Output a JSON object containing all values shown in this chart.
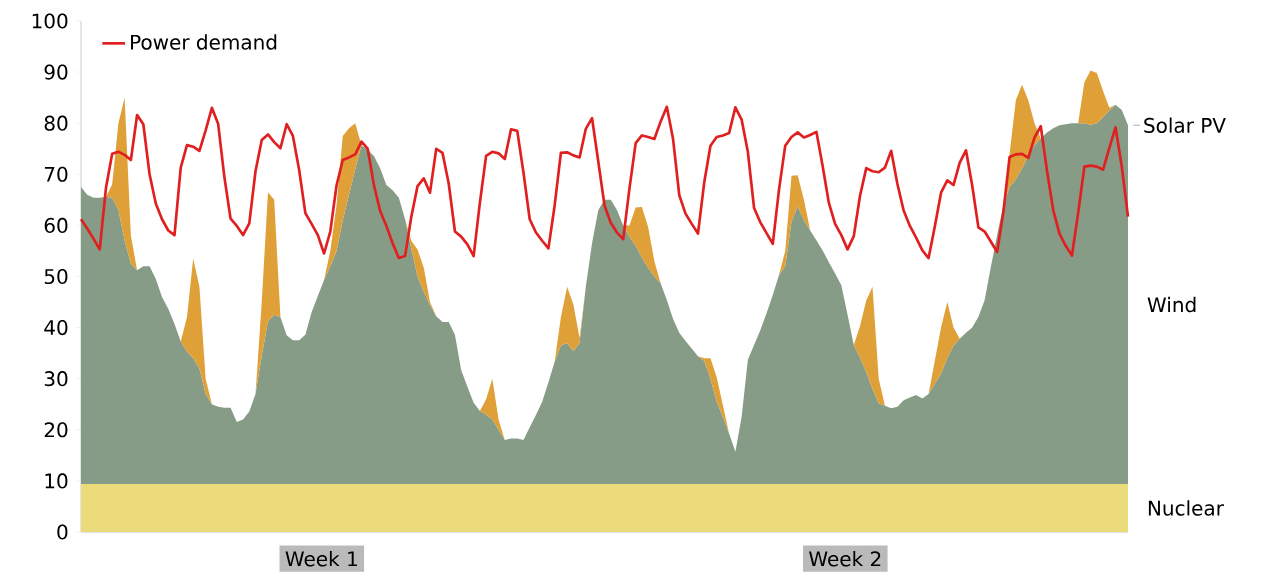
{
  "chart_data": {
    "type": "area",
    "stacked": true,
    "legend": "top left",
    "annotations": [
      "Week 1",
      "Week 2"
    ],
    "ylim": [
      0,
      100
    ],
    "yticks": [
      0,
      10,
      20,
      30,
      40,
      50,
      60,
      70,
      80,
      90,
      100
    ],
    "categories": [
      null,
      null,
      null,
      null,
      null,
      null,
      null,
      null,
      null,
      null,
      null,
      null,
      null,
      null,
      null,
      null,
      null,
      null,
      null,
      null,
      null,
      null,
      null,
      null,
      null,
      null,
      null,
      null,
      null,
      null,
      null,
      null,
      null,
      null,
      null,
      null,
      null,
      null,
      null,
      null,
      null,
      null,
      null,
      null,
      null,
      null,
      null,
      null,
      null,
      null,
      null,
      null,
      null,
      null,
      null,
      null,
      null,
      null,
      null,
      null,
      null,
      null,
      null,
      null,
      null,
      null,
      null,
      null,
      null,
      null,
      null,
      null,
      null,
      null,
      null,
      null,
      null,
      null,
      null,
      null,
      null,
      null,
      null,
      null,
      null,
      null,
      null,
      null,
      null,
      null,
      null,
      null,
      null,
      null,
      null,
      null,
      null,
      null,
      null,
      null,
      null,
      null,
      null,
      null,
      null,
      null,
      null,
      null,
      null,
      null,
      null,
      null,
      null,
      null,
      null,
      null,
      null,
      null,
      null,
      null,
      null,
      null,
      null,
      null,
      null,
      null,
      null,
      null,
      null,
      null,
      null,
      null,
      null,
      null,
      null,
      null,
      null,
      null,
      null,
      null,
      null,
      null,
      null,
      null,
      null,
      null,
      null,
      null,
      null,
      null,
      null,
      null,
      null,
      null,
      null,
      null,
      null,
      null,
      null,
      null,
      null,
      null,
      null,
      null,
      null,
      null,
      null,
      null,
      null
    ],
    "series": [
      {
        "name": "Nuclear",
        "color": "#ecdb7a",
        "values": [
          9.4,
          9.4,
          9.4,
          9.4,
          9.4,
          9.4,
          9.4,
          9.4,
          9.4,
          9.4,
          9.4,
          9.4,
          9.4,
          9.4,
          9.4,
          9.4,
          9.4,
          9.4,
          9.4,
          9.4,
          9.4,
          9.4,
          9.4,
          9.4,
          9.4,
          9.4,
          9.4,
          9.4,
          9.4,
          9.4,
          9.4,
          9.4,
          9.4,
          9.4,
          9.4,
          9.4,
          9.4,
          9.4,
          9.4,
          9.4,
          9.4,
          9.4,
          9.4,
          9.4,
          9.4,
          9.4,
          9.4,
          9.4,
          9.4,
          9.4,
          9.4,
          9.4,
          9.4,
          9.4,
          9.4,
          9.4,
          9.4,
          9.4,
          9.4,
          9.4,
          9.4,
          9.4,
          9.4,
          9.4,
          9.4,
          9.4,
          9.4,
          9.4,
          9.4,
          9.4,
          9.4,
          9.4,
          9.4,
          9.4,
          9.4,
          9.4,
          9.4,
          9.4,
          9.4,
          9.4,
          9.4,
          9.4,
          9.4,
          9.4,
          9.4,
          9.4,
          9.4,
          9.4,
          9.4,
          9.4,
          9.4,
          9.4,
          9.4,
          9.4,
          9.4,
          9.4,
          9.4,
          9.4,
          9.4,
          9.4,
          9.4,
          9.4,
          9.4,
          9.4,
          9.4,
          9.4,
          9.4,
          9.4,
          9.4,
          9.4,
          9.4,
          9.4,
          9.4,
          9.4,
          9.4,
          9.4,
          9.4,
          9.4,
          9.4,
          9.4,
          9.4,
          9.4,
          9.4,
          9.4,
          9.4,
          9.4,
          9.4,
          9.4,
          9.4,
          9.4,
          9.4,
          9.4,
          9.4,
          9.4,
          9.4,
          9.4,
          9.4,
          9.4,
          9.4,
          9.4,
          9.4,
          9.4,
          9.4,
          9.4,
          9.4,
          9.4,
          9.4,
          9.4,
          9.4,
          9.4,
          9.4,
          9.4,
          9.4,
          9.4,
          9.4,
          9.4,
          9.4,
          9.4,
          9.4,
          9.4,
          9.4,
          9.4,
          9.4,
          9.4,
          9.4,
          9.4,
          9.4,
          9.4,
          9.4
        ]
      },
      {
        "name": "Wind",
        "color": "#869c86",
        "values": [
          58.1,
          56.6,
          56.0,
          56.0,
          56.2,
          56.0,
          53.6,
          47.6,
          43.1,
          41.8,
          42.6,
          42.6,
          40.1,
          36.6,
          34.3,
          31.3,
          27.9,
          25.9,
          24.6,
          22.6,
          17.6,
          15.6,
          15.1,
          14.9,
          14.9,
          12.1,
          12.6,
          14.2,
          17.6,
          25.1,
          31.8,
          33.1,
          32.6,
          29.1,
          28.1,
          28.1,
          29.2,
          33.6,
          36.8,
          39.9,
          42.6,
          45.6,
          51.6,
          56.6,
          61.6,
          66.3,
          65.4,
          64.2,
          61.8,
          58.5,
          57.5,
          56.0,
          51.8,
          46.1,
          40.6,
          37.6,
          35.0,
          32.8,
          31.7,
          31.7,
          29.2,
          22.3,
          19.0,
          15.9,
          14.3,
          13.6,
          12.6,
          10.6,
          8.6,
          8.9,
          8.9,
          8.6,
          11.1,
          13.5,
          16.1,
          19.9,
          23.9,
          27.1,
          27.6,
          26.0,
          27.6,
          38.6,
          47.1,
          53.6,
          55.6,
          55.6,
          53.6,
          50.6,
          48.4,
          46.6,
          44.3,
          42.3,
          40.6,
          39.3,
          36.0,
          32.3,
          29.6,
          28.0,
          26.5,
          25.0,
          24.1,
          20.6,
          16.1,
          13.1,
          9.8,
          6.3,
          13.1,
          24.3,
          27.2,
          30.1,
          33.4,
          37.0,
          40.9,
          42.6,
          51.3,
          54.3,
          51.6,
          49.6,
          47.7,
          45.7,
          43.4,
          41.2,
          38.9,
          33.1,
          27.2,
          24.7,
          21.9,
          18.6,
          15.8,
          15.3,
          14.8,
          15.1,
          16.4,
          16.9,
          17.4,
          16.7,
          17.6,
          19.6,
          21.6,
          24.6,
          27.1,
          28.4,
          29.6,
          30.6,
          32.7,
          36.0,
          42.5,
          48.7,
          54.6,
          58.1,
          59.6,
          61.8,
          64.2,
          66.3,
          67.6,
          68.8,
          69.6,
          70.2,
          70.4,
          70.6,
          70.6,
          70.6,
          70.3,
          70.6,
          71.8,
          73.1,
          74.2,
          73.2,
          70.2
        ]
      },
      {
        "name": "Solar PV",
        "color": "#e0a038",
        "values": [
          0,
          0,
          0,
          0,
          0,
          2.6,
          17,
          28,
          5.5,
          0,
          0,
          0,
          0,
          0,
          0,
          0,
          0,
          6.7,
          19.5,
          16,
          3,
          0,
          0,
          0,
          0,
          0,
          0,
          0,
          0,
          10.5,
          25.3,
          22.5,
          0,
          0,
          0,
          0,
          0,
          0,
          0,
          0,
          3,
          9,
          16.5,
          13,
          9,
          0,
          0,
          0,
          0,
          0,
          0,
          0,
          0,
          1.5,
          5.3,
          4.7,
          0.6,
          0,
          0,
          0,
          0,
          0,
          0,
          0,
          0,
          3,
          8,
          2,
          0,
          0,
          0,
          0,
          0,
          0,
          0,
          0,
          0,
          5.5,
          11,
          9.1,
          1,
          0,
          0,
          0,
          0,
          0,
          0,
          0,
          2.2,
          7.5,
          9.9,
          8,
          3,
          0,
          0,
          0,
          0,
          0,
          0,
          0,
          0.5,
          4,
          4.8,
          2.3,
          0,
          0,
          0,
          0,
          0,
          0,
          0,
          0,
          0,
          3,
          9,
          6.1,
          4,
          0,
          0,
          0,
          0,
          0,
          0,
          0,
          0,
          6.2,
          14,
          20,
          4.8,
          0,
          0,
          0,
          0,
          0,
          0,
          0,
          0,
          4.5,
          9,
          11,
          3.5,
          0,
          0,
          0,
          0,
          0,
          0,
          0,
          0,
          6.5,
          15.5,
          16.3,
          10.9,
          4.3,
          0,
          0,
          0,
          0,
          0,
          0,
          0,
          8,
          10.6,
          9.8,
          5.1,
          0.5,
          0,
          0,
          0
        ]
      },
      {
        "name": "Power demand",
        "type": "line",
        "color": "#e02020",
        "values": [
          61.2,
          59.4,
          57.4,
          55.3,
          67.3,
          74,
          74.4,
          73.8,
          72.8,
          81.6,
          79.8,
          70,
          64.3,
          61.2,
          59,
          58.1,
          71.3,
          75.7,
          75.4,
          74.6,
          78.6,
          83,
          79.9,
          69.5,
          61.3,
          59.9,
          58.1,
          60.4,
          70.6,
          76.7,
          77.8,
          76.3,
          75.1,
          79.8,
          77.5,
          70.9,
          62.4,
          60.3,
          58.1,
          54.5,
          58.8,
          67.8,
          72.8,
          73.3,
          73.9,
          76.4,
          75,
          67.9,
          62.8,
          59.9,
          56.5,
          53.6,
          54,
          61.7,
          67.7,
          69.2,
          66.4,
          75,
          74.2,
          68.2,
          58.8,
          57.8,
          56.3,
          54,
          64.4,
          73.6,
          74.4,
          74.1,
          73,
          78.8,
          78.5,
          70.3,
          61.2,
          58.6,
          57,
          55.5,
          63.9,
          74.2,
          74.3,
          73.7,
          73.3,
          78.9,
          81,
          72.5,
          63.9,
          60.5,
          58.6,
          57.3,
          67.2,
          76.1,
          77.6,
          77.3,
          76.9,
          80.3,
          83.2,
          76.9,
          65.9,
          62.3,
          60.3,
          58.4,
          68.4,
          75.6,
          77.3,
          77.6,
          78.1,
          83.1,
          80.7,
          74.4,
          63.4,
          60.6,
          58.5,
          56.4,
          67,
          75.6,
          77.3,
          78.2,
          77.2,
          77.7,
          78.3,
          71.6,
          64.4,
          60.3,
          58.1,
          55.3,
          57.9,
          65.8,
          71.2,
          70.6,
          70.4,
          71.3,
          74.6,
          68.1,
          62.9,
          59.9,
          57.6,
          55.1,
          53.6,
          59.8,
          66.4,
          68.8,
          67.9,
          72.3,
          74.7,
          67.8,
          59.6,
          58.8,
          56.8,
          54.8,
          62.6,
          73.4,
          73.9,
          74,
          73.2,
          77.2,
          79.4,
          70.7,
          63,
          58.4,
          56,
          54.1,
          62.4,
          71.5,
          71.7,
          71.5,
          70.9,
          75.1,
          79.2,
          71.5,
          61.7
        ]
      }
    ]
  }
}
